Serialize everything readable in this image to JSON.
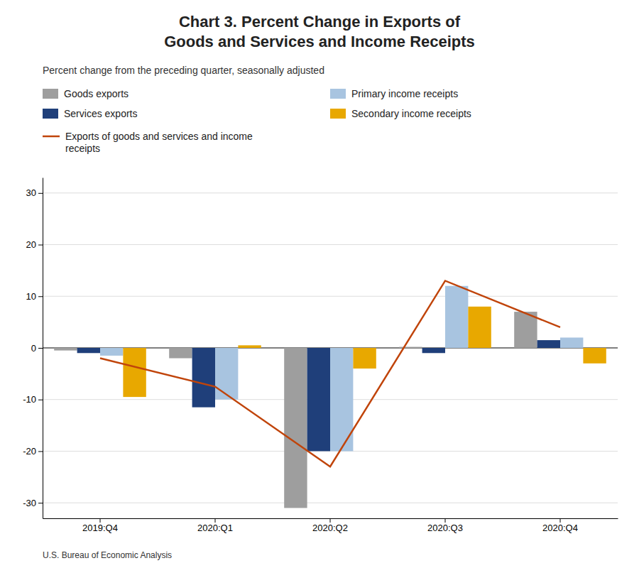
{
  "chart_data": {
    "type": "bar",
    "title": "Chart 3. Percent Change in Exports of\nGoods and Services and Income Receipts",
    "subtitle": "Percent change from the preceding quarter, seasonally adjusted",
    "footnote": "U.S. Bureau of Economic Analysis",
    "categories": [
      "2019:Q4",
      "2020:Q1",
      "2020:Q2",
      "2020:Q3",
      "2020:Q4"
    ],
    "series": [
      {
        "name": "Goods exports",
        "type": "bar",
        "color": "#9E9E9E",
        "values": [
          -0.5,
          -2.0,
          -31.0,
          0.2,
          7.0
        ]
      },
      {
        "name": "Services exports",
        "type": "bar",
        "color": "#1F3F7A",
        "values": [
          -1.0,
          -11.5,
          -20.0,
          -1.0,
          1.5
        ]
      },
      {
        "name": "Primary income receipts",
        "type": "bar",
        "color": "#A8C4E0",
        "values": [
          -1.5,
          -10.0,
          -20.0,
          12.0,
          2.0
        ]
      },
      {
        "name": "Secondary income receipts",
        "type": "bar",
        "color": "#E8A800",
        "values": [
          -9.5,
          0.5,
          -4.0,
          8.0,
          -3.0
        ]
      },
      {
        "name": "Exports of goods and services and income\nreceipts",
        "type": "line",
        "color": "#C0440A",
        "values": [
          -2.0,
          -7.5,
          -23.0,
          13.0,
          4.0
        ]
      }
    ],
    "ylim": [
      -33,
      33
    ],
    "yticks": [
      -30,
      -20,
      -10,
      0,
      10,
      20,
      30
    ],
    "grid": true,
    "legend": "top"
  }
}
